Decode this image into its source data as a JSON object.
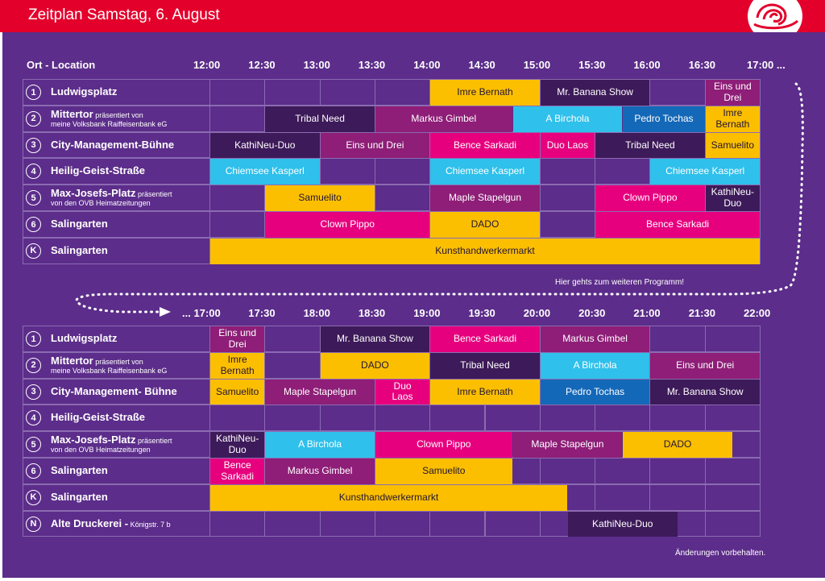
{
  "header": {
    "title": "Zeitplan Samstag, 6. August"
  },
  "colors": {
    "yellow": "#fcbf00",
    "darkpurple": "#3d1a59",
    "magenta": "#8e1e77",
    "cyan": "#2fc0eb",
    "blue": "#1468b8",
    "pink": "#e7007e"
  },
  "section1": {
    "location_header": "Ort - Location",
    "times": [
      "12:00",
      "12:30",
      "13:00",
      "13:30",
      "14:00",
      "14:30",
      "15:00",
      "15:30",
      "16:00",
      "16:30",
      "17:00 ..."
    ],
    "rows": [
      {
        "badge": "1",
        "name": "Ludwigsplatz",
        "suffix": "",
        "sub": ""
      },
      {
        "badge": "2",
        "name": "Mittertor",
        "suffix": "präsentiert von",
        "sub": "meine Volksbank Raiffeisenbank eG"
      },
      {
        "badge": "3",
        "name": "City-Management-Bühne",
        "suffix": "",
        "sub": ""
      },
      {
        "badge": "4",
        "name": "Heilig-Geist-Straße",
        "suffix": "",
        "sub": ""
      },
      {
        "badge": "5",
        "name": "Max-Josefs-Platz",
        "suffix": "präsentiert",
        "sub": "von den OVB Heimatzeitungen"
      },
      {
        "badge": "6",
        "name": "Salingarten",
        "suffix": "",
        "sub": ""
      },
      {
        "badge": "K",
        "name": "Salingarten",
        "suffix": "",
        "sub": ""
      }
    ],
    "events": [
      {
        "row": 0,
        "start": 4,
        "end": 6,
        "lines": [
          "Imre Bernath"
        ],
        "color": "yellow"
      },
      {
        "row": 0,
        "start": 6,
        "end": 8,
        "lines": [
          "Mr. Banana Show"
        ],
        "color": "darkpurple"
      },
      {
        "row": 0,
        "start": 9,
        "end": 10,
        "lines": [
          "Eins und",
          "Drei"
        ],
        "color": "magenta"
      },
      {
        "row": 1,
        "start": 1,
        "end": 3,
        "lines": [
          "Tribal Need"
        ],
        "color": "darkpurple"
      },
      {
        "row": 1,
        "start": 3,
        "end": 5.5,
        "lines": [
          "Markus Gimbel"
        ],
        "color": "magenta"
      },
      {
        "row": 1,
        "start": 5.5,
        "end": 7.5,
        "lines": [
          "A Birchola"
        ],
        "color": "cyan"
      },
      {
        "row": 1,
        "start": 7.5,
        "end": 9,
        "lines": [
          "Pedro Tochas"
        ],
        "color": "blue"
      },
      {
        "row": 1,
        "start": 9,
        "end": 10,
        "lines": [
          "Imre",
          "Bernath"
        ],
        "color": "yellow"
      },
      {
        "row": 2,
        "start": 0,
        "end": 2,
        "lines": [
          "KathiNeu-Duo"
        ],
        "color": "darkpurple"
      },
      {
        "row": 2,
        "start": 2,
        "end": 4,
        "lines": [
          "Eins und Drei"
        ],
        "color": "magenta"
      },
      {
        "row": 2,
        "start": 4,
        "end": 6,
        "lines": [
          "Bence Sarkadi"
        ],
        "color": "pink"
      },
      {
        "row": 2,
        "start": 6,
        "end": 7,
        "lines": [
          "Duo Laos"
        ],
        "color": "pink"
      },
      {
        "row": 2,
        "start": 7,
        "end": 9,
        "lines": [
          "Tribal Need"
        ],
        "color": "darkpurple"
      },
      {
        "row": 2,
        "start": 9,
        "end": 10,
        "lines": [
          "Samuelito"
        ],
        "color": "yellow"
      },
      {
        "row": 3,
        "start": 0,
        "end": 2,
        "lines": [
          "Chiemsee Kasperl"
        ],
        "color": "cyan"
      },
      {
        "row": 3,
        "start": 4,
        "end": 6,
        "lines": [
          "Chiemsee Kasperl"
        ],
        "color": "cyan"
      },
      {
        "row": 3,
        "start": 8,
        "end": 10,
        "lines": [
          "Chiemsee Kasperl"
        ],
        "color": "cyan"
      },
      {
        "row": 4,
        "start": 1,
        "end": 3,
        "lines": [
          "Samuelito"
        ],
        "color": "yellow"
      },
      {
        "row": 4,
        "start": 4,
        "end": 6,
        "lines": [
          "Maple Stapelgun"
        ],
        "color": "magenta"
      },
      {
        "row": 4,
        "start": 7,
        "end": 9,
        "lines": [
          "Clown Pippo"
        ],
        "color": "pink"
      },
      {
        "row": 4,
        "start": 9,
        "end": 10,
        "lines": [
          "KathiNeu-",
          "Duo"
        ],
        "color": "darkpurple"
      },
      {
        "row": 5,
        "start": 1,
        "end": 4,
        "lines": [
          "Clown Pippo"
        ],
        "color": "pink"
      },
      {
        "row": 5,
        "start": 4,
        "end": 6,
        "lines": [
          "DADO"
        ],
        "color": "yellow"
      },
      {
        "row": 5,
        "start": 7,
        "end": 10,
        "lines": [
          "Bence Sarkadi"
        ],
        "color": "pink"
      },
      {
        "row": 6,
        "start": 0,
        "end": 10,
        "lines": [
          "Kunsthandwerkermarkt"
        ],
        "color": "yellow"
      }
    ]
  },
  "continue_note": "Hier gehts zum weiteren Programm!",
  "section2": {
    "times": [
      "... 17:00",
      "17:30",
      "18:00",
      "18:30",
      "19:00",
      "19:30",
      "20:00",
      "20:30",
      "21:00",
      "21:30",
      "22:00"
    ],
    "rows": [
      {
        "badge": "1",
        "name": "Ludwigsplatz",
        "suffix": "",
        "sub": ""
      },
      {
        "badge": "2",
        "name": "Mittertor",
        "suffix": "präsentiert von",
        "sub": "meine Volksbank Raiffeisenbank eG"
      },
      {
        "badge": "3",
        "name": "City-Management- Bühne",
        "suffix": "",
        "sub": ""
      },
      {
        "badge": "4",
        "name": "Heilig-Geist-Straße",
        "suffix": "",
        "sub": ""
      },
      {
        "badge": "5",
        "name": "Max-Josefs-Platz",
        "suffix": "präsentiert",
        "sub": "von den OVB Heimatzeitungen"
      },
      {
        "badge": "6",
        "name": "Salingarten",
        "suffix": "",
        "sub": ""
      },
      {
        "badge": "K",
        "name": "Salingarten",
        "suffix": "",
        "sub": ""
      },
      {
        "badge": "N",
        "name": "Alte Druckerei -",
        "suffix": "Königstr. 7 b",
        "sub": ""
      }
    ],
    "events": [
      {
        "row": 0,
        "start": 0,
        "end": 1,
        "lines": [
          "Eins und",
          "Drei"
        ],
        "color": "magenta"
      },
      {
        "row": 0,
        "start": 2,
        "end": 4,
        "lines": [
          "Mr. Banana Show"
        ],
        "color": "darkpurple"
      },
      {
        "row": 0,
        "start": 4,
        "end": 6,
        "lines": [
          "Bence Sarkadi"
        ],
        "color": "pink"
      },
      {
        "row": 0,
        "start": 6,
        "end": 8,
        "lines": [
          "Markus Gimbel"
        ],
        "color": "magenta"
      },
      {
        "row": 1,
        "start": 0,
        "end": 1,
        "lines": [
          "Imre",
          "Bernath"
        ],
        "color": "yellow"
      },
      {
        "row": 1,
        "start": 2,
        "end": 4,
        "lines": [
          "DADO"
        ],
        "color": "yellow"
      },
      {
        "row": 1,
        "start": 4,
        "end": 6,
        "lines": [
          "Tribal Need"
        ],
        "color": "darkpurple"
      },
      {
        "row": 1,
        "start": 6,
        "end": 8,
        "lines": [
          "A Birchola"
        ],
        "color": "cyan"
      },
      {
        "row": 1,
        "start": 8,
        "end": 10,
        "lines": [
          "Eins und Drei"
        ],
        "color": "magenta"
      },
      {
        "row": 2,
        "start": 0,
        "end": 1,
        "lines": [
          "Samuelito"
        ],
        "color": "yellow"
      },
      {
        "row": 2,
        "start": 1,
        "end": 3,
        "lines": [
          "Maple Stapelgun"
        ],
        "color": "magenta"
      },
      {
        "row": 2,
        "start": 3,
        "end": 4,
        "lines": [
          "Duo",
          "Laos"
        ],
        "color": "pink"
      },
      {
        "row": 2,
        "start": 4,
        "end": 6,
        "lines": [
          "Imre Bernath"
        ],
        "color": "yellow"
      },
      {
        "row": 2,
        "start": 6,
        "end": 8,
        "lines": [
          "Pedro Tochas"
        ],
        "color": "blue"
      },
      {
        "row": 2,
        "start": 8,
        "end": 10,
        "lines": [
          "Mr. Banana Show"
        ],
        "color": "darkpurple"
      },
      {
        "row": 4,
        "start": 0,
        "end": 1,
        "lines": [
          "KathiNeu-",
          "Duo"
        ],
        "color": "darkpurple"
      },
      {
        "row": 4,
        "start": 1,
        "end": 3,
        "lines": [
          "A Birchola"
        ],
        "color": "cyan"
      },
      {
        "row": 4,
        "start": 3,
        "end": 5.5,
        "lines": [
          "Clown Pippo"
        ],
        "color": "pink"
      },
      {
        "row": 4,
        "start": 5.5,
        "end": 7.5,
        "lines": [
          "Maple Stapelgun"
        ],
        "color": "magenta"
      },
      {
        "row": 4,
        "start": 7.5,
        "end": 9.5,
        "lines": [
          "DADO"
        ],
        "color": "yellow"
      },
      {
        "row": 5,
        "start": 0,
        "end": 1,
        "lines": [
          "Bence",
          "Sarkadi"
        ],
        "color": "pink"
      },
      {
        "row": 5,
        "start": 1,
        "end": 3,
        "lines": [
          "Markus Gimbel"
        ],
        "color": "magenta"
      },
      {
        "row": 5,
        "start": 3,
        "end": 5.5,
        "lines": [
          "Samuelito"
        ],
        "color": "yellow"
      },
      {
        "row": 6,
        "start": 0,
        "end": 6.5,
        "lines": [
          "Kunsthandwerkermarkt"
        ],
        "color": "yellow"
      },
      {
        "row": 7,
        "start": 6.5,
        "end": 8.5,
        "lines": [
          "KathiNeu-Duo"
        ],
        "color": "darkpurple"
      }
    ]
  },
  "footer": {
    "note": "Änderungen vorbehalten."
  }
}
